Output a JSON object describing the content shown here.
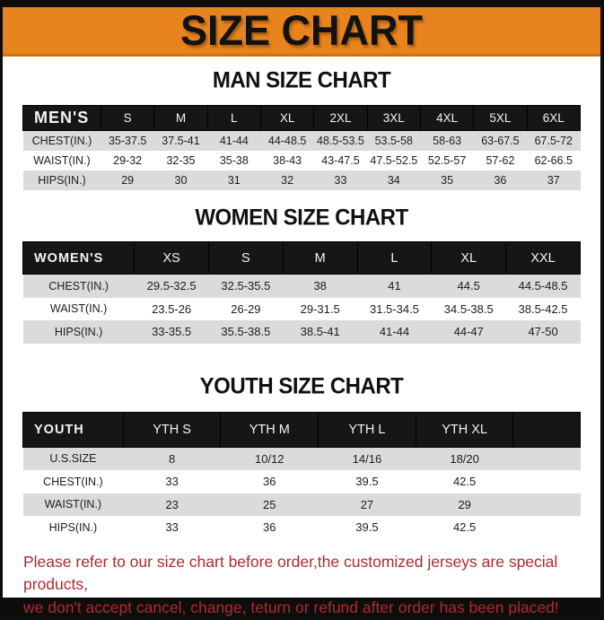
{
  "banner": {
    "title": "SIZE CHART"
  },
  "sections": [
    {
      "heading": "MAN SIZE CHART",
      "table": {
        "header": [
          "MEN'S",
          "S",
          "M",
          "L",
          "XL",
          "2XL",
          "3XL",
          "4XL",
          "5XL",
          "6XL"
        ],
        "rows": [
          {
            "label": "CHEST(IN.)",
            "values": [
              "35-37.5",
              "37.5-41",
              "41-44",
              "44-48.5",
              "48.5-53.5",
              "53.5-58",
              "58-63",
              "63-67.5",
              "67.5-72"
            ]
          },
          {
            "label": "WAIST(IN.)",
            "values": [
              "29-32",
              "32-35",
              "35-38",
              "38-43",
              "43-47.5",
              "47.5-52.5",
              "52.5-57",
              "57-62",
              "62-66.5"
            ]
          },
          {
            "label": "HIPS(IN.)",
            "values": [
              "29",
              "30",
              "31",
              "32",
              "33",
              "34",
              "35",
              "36",
              "37"
            ]
          }
        ]
      }
    },
    {
      "heading": "WOMEN SIZE CHART",
      "table": {
        "header": [
          "WOMEN'S",
          "XS",
          "S",
          "M",
          "L",
          "XL",
          "XXL"
        ],
        "rows": [
          {
            "label": "CHEST(IN.)",
            "values": [
              "29.5-32.5",
              "32.5-35.5",
              "38",
              "41",
              "44.5",
              "44.5-48.5"
            ]
          },
          {
            "label": "WAIST(IN.)",
            "values": [
              "23.5-26",
              "26-29",
              "29-31.5",
              "31.5-34.5",
              "34.5-38.5",
              "38.5-42.5"
            ]
          },
          {
            "label": "HIPS(IN.)",
            "values": [
              "33-35.5",
              "35.5-38.5",
              "38.5-41",
              "41-44",
              "44-47",
              "47-50"
            ]
          }
        ]
      }
    },
    {
      "heading": "YOUTH SIZE CHART",
      "table": {
        "header": [
          "YOUTH",
          "YTH S",
          "YTH M",
          "YTH L",
          "YTH XL"
        ],
        "rows": [
          {
            "label": "U.S.SIZE",
            "values": [
              "8",
              "10/12",
              "14/16",
              "18/20"
            ]
          },
          {
            "label": "CHEST(IN.)",
            "values": [
              "33",
              "36",
              "39.5",
              "42.5"
            ]
          },
          {
            "label": "WAIST(IN.)",
            "values": [
              "23",
              "25",
              "27",
              "29"
            ]
          },
          {
            "label": "HIPS(IN.)",
            "values": [
              "33",
              "36",
              "39.5",
              "42.5"
            ]
          }
        ]
      }
    }
  ],
  "footer": {
    "line1": "Please refer to our size chart before order,the customized jerseys are special products,",
    "line2": "we don't accept cancel, change, teturn or refund after order has been placed!"
  },
  "colors": {
    "banner_orange": "#E8831D",
    "banner_edge": "#CF7012",
    "header_black": "#161616",
    "row_gray": "#DBDBDB",
    "note_red": "#B2292E"
  }
}
